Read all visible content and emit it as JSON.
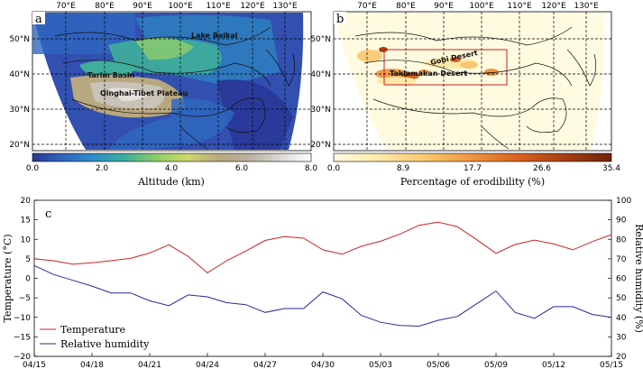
{
  "panel_a": {
    "letter": "a",
    "lon_labels": [
      "70°E",
      "80°E",
      "90°E",
      "100°E",
      "110°E",
      "120°E",
      "130°E"
    ],
    "lat_labels": [
      "50°N",
      "40°N",
      "30°N",
      "20°N"
    ],
    "place_labels": [
      "Lake Baikal",
      "Tarim Basin",
      "Qinghai-Tibet Plateau"
    ],
    "colorbar_ticks": [
      "0.0",
      "2.0",
      "4.0",
      "6.0",
      "8.0"
    ],
    "colorbar_label": "Altitude (km)",
    "colormap": [
      "#2c3892",
      "#2f67c0",
      "#2e8fc6",
      "#3fae9a",
      "#8fcc6a",
      "#cfd86a",
      "#b8a880",
      "#b9b0a2",
      "#dcd8d2",
      "#ffffff"
    ]
  },
  "panel_b": {
    "letter": "b",
    "lon_labels": [
      "70°E",
      "80°E",
      "90°E",
      "100°E",
      "110°E",
      "120°E",
      "130°E"
    ],
    "lat_labels": [
      "50°N",
      "40°N",
      "30°N",
      "20°N"
    ],
    "place_labels": [
      "Gobi Desert",
      "Taklamakan Desert"
    ],
    "colorbar_ticks": [
      "0.0",
      "8.9",
      "17.7",
      "26.6",
      "35.4"
    ],
    "colorbar_label": "Percentage of erodibility (%)",
    "colormap": [
      "#fffbe0",
      "#fde9a9",
      "#f9c66f",
      "#ee9440",
      "#d86120",
      "#a83f12",
      "#6b2208"
    ]
  },
  "chart_data": {
    "type": "line",
    "panel_letter": "c",
    "x": [
      "04/15",
      "04/16",
      "04/17",
      "04/18",
      "04/19",
      "04/20",
      "04/21",
      "04/22",
      "04/23",
      "04/24",
      "04/25",
      "04/26",
      "04/27",
      "04/28",
      "04/29",
      "04/30",
      "05/01",
      "05/02",
      "05/03",
      "05/04",
      "05/05",
      "05/06",
      "05/07",
      "05/08",
      "05/09",
      "05/10",
      "05/11",
      "05/12",
      "05/13",
      "05/14",
      "05/15"
    ],
    "xtick_labels": [
      "04/15",
      "04/18",
      "04/21",
      "04/24",
      "04/27",
      "04/30",
      "05/03",
      "05/06",
      "05/09",
      "05/12",
      "05/15"
    ],
    "y_left_label": "Temperature (°C)",
    "y_left_lim": [
      -20,
      20
    ],
    "y_left_ticks": [
      "20",
      "15",
      "10",
      "5",
      "0",
      "−5",
      "−10",
      "−15",
      "−20"
    ],
    "y_right_label": "Relative humidity (%)",
    "y_right_lim": [
      20,
      100
    ],
    "y_right_ticks": [
      "100",
      "90",
      "80",
      "70",
      "60",
      "50",
      "40",
      "30",
      "20"
    ],
    "series": [
      {
        "name": "Temperature",
        "axis": "left",
        "color": "#cc2222",
        "values": [
          5.0,
          4.5,
          3.6,
          4.0,
          4.5,
          5.1,
          6.5,
          8.6,
          5.6,
          1.4,
          4.5,
          7.0,
          9.7,
          10.7,
          10.3,
          7.3,
          6.2,
          8.2,
          9.5,
          11.3,
          13.6,
          14.4,
          13.2,
          9.9,
          6.4,
          8.7,
          9.8,
          8.8,
          7.3,
          9.4,
          11.2
        ]
      },
      {
        "name": "Relative humidity",
        "axis": "right",
        "color": "#2828a0",
        "values": [
          66.5,
          62.0,
          59.0,
          56.0,
          52.5,
          52.5,
          48.5,
          46.0,
          51.5,
          50.5,
          47.5,
          46.5,
          42.5,
          44.5,
          44.5,
          53.0,
          49.5,
          41.0,
          37.5,
          35.8,
          35.5,
          38.5,
          40.5,
          47.0,
          53.5,
          42.5,
          39.5,
          45.5,
          45.5,
          41.5,
          40.0
        ]
      }
    ],
    "legend": "lower-left",
    "grid": false
  }
}
